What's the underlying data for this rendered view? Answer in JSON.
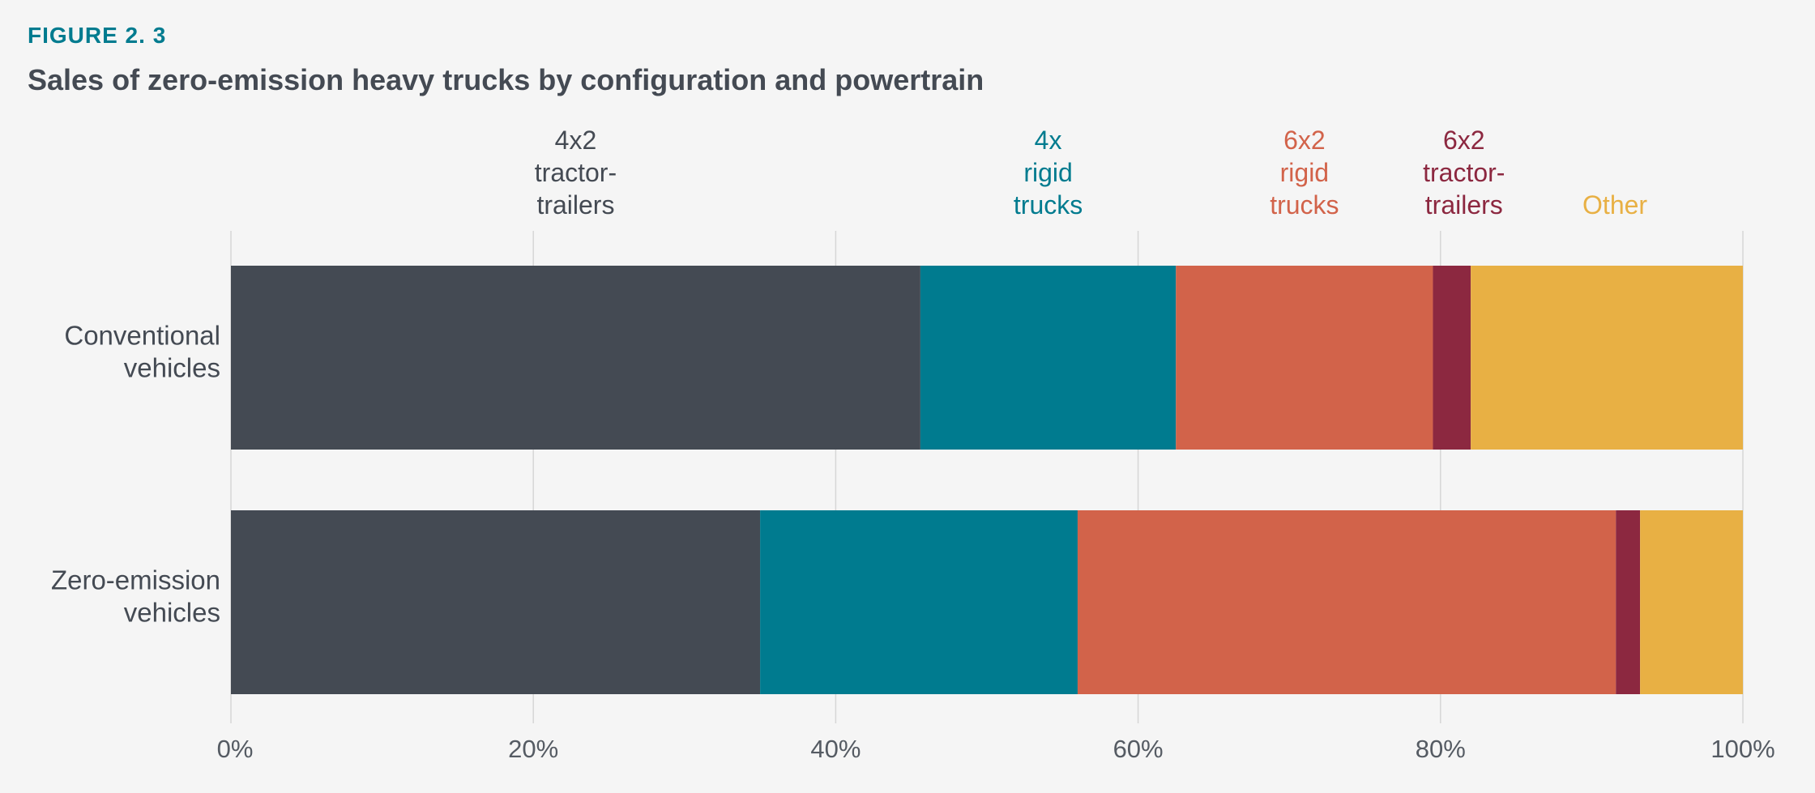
{
  "header": {
    "figure_label": "FIGURE 2. 3",
    "title": "Sales of zero-emission heavy trucks by configuration and powertrain"
  },
  "chart_data": {
    "type": "bar",
    "orientation": "horizontal",
    "stacked": true,
    "title": "Sales of zero-emission heavy trucks by configuration and powertrain",
    "xlim": [
      0,
      100
    ],
    "x_ticks": [
      "0%",
      "20%",
      "40%",
      "60%",
      "80%",
      "100%"
    ],
    "grid": true,
    "legend_placement": "top",
    "categories": [
      [
        "Conventional",
        "vehicles"
      ],
      [
        "Zero-emission",
        "vehicles"
      ]
    ],
    "series": [
      {
        "name": [
          "4x2",
          "tractor-",
          "trailers"
        ],
        "color": "#444a53",
        "values": [
          45.6,
          35.0
        ]
      },
      {
        "name": [
          "4x",
          "rigid",
          "trucks"
        ],
        "color": "#007b8f",
        "values": [
          16.9,
          21.0
        ]
      },
      {
        "name": [
          "6x2",
          "rigid",
          "trucks"
        ],
        "color": "#d2634a",
        "values": [
          17.0,
          35.6
        ]
      },
      {
        "name": [
          "6x2",
          "tractor-",
          "trailers"
        ],
        "color": "#8c2840",
        "values": [
          2.5,
          1.6
        ]
      },
      {
        "name": [
          "Other"
        ],
        "color": "#e8b044",
        "values": [
          18.0,
          6.8
        ]
      }
    ]
  }
}
